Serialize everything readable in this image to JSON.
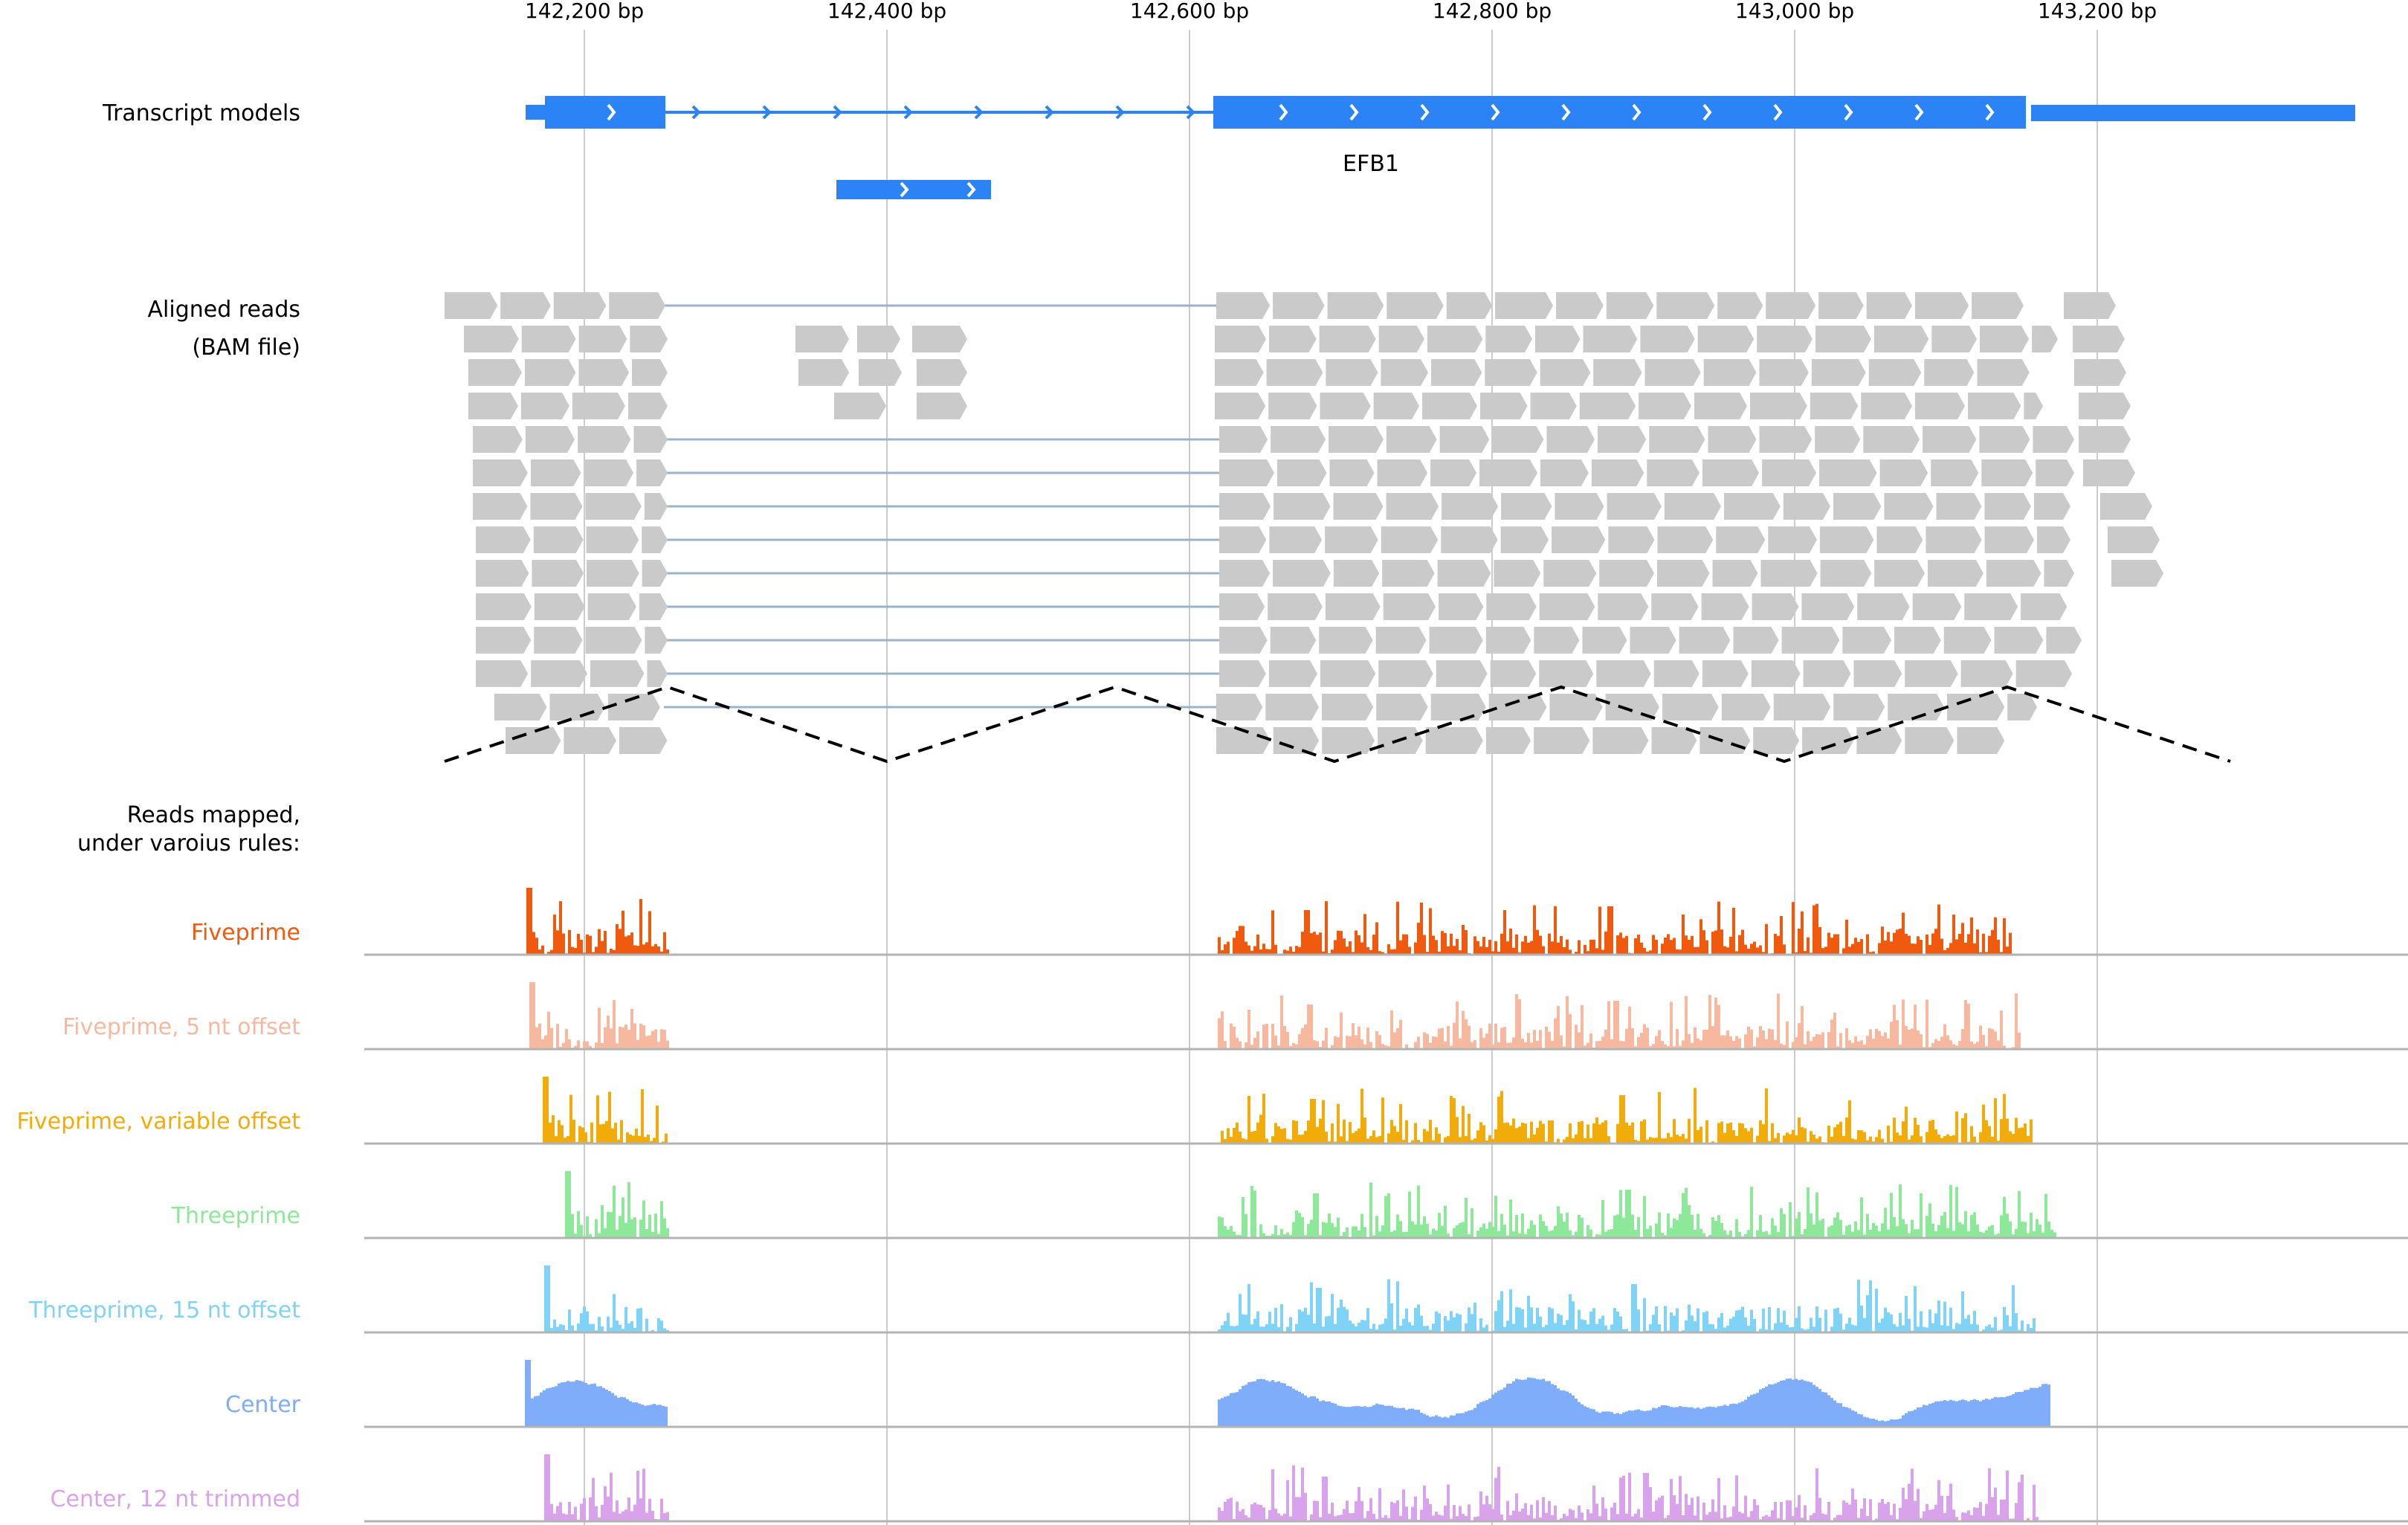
{
  "axis": {
    "ticks": [
      "142,200 bp",
      "142,400 bp",
      "142,600 bp",
      "142,800 bp",
      "143,000 bp",
      "143,200 bp"
    ]
  },
  "transcripts": {
    "label": "Transcript models",
    "gene_name": "EFB1"
  },
  "reads": {
    "label_line1": "Aligned reads",
    "label_line2": "(BAM file)"
  },
  "mapped": {
    "label_line1": "Reads mapped,",
    "label_line2": "under varoius rules:"
  },
  "tracks": [
    {
      "label": "Fiveprime",
      "color": "#f05a0f"
    },
    {
      "label": "Fiveprime, 5 nt offset",
      "color": "#f7b8a0"
    },
    {
      "label": "Fiveprime, variable offset",
      "color": "#f2ac0a"
    },
    {
      "label": "Threeprime",
      "color": "#8ee89a"
    },
    {
      "label": "Threeprime, 15 nt offset",
      "color": "#7fd3f7"
    },
    {
      "label": "Center",
      "color": "#7fadf9"
    },
    {
      "label": "Center, 12 nt trimmed",
      "color": "#d9a3ec"
    }
  ],
  "colors": {
    "transcript": "#2b83f6",
    "read": "#cacaca",
    "intron_link": "#9ab3cc",
    "gridline": "#cccccc",
    "baseline": "#b3b3b3"
  }
}
